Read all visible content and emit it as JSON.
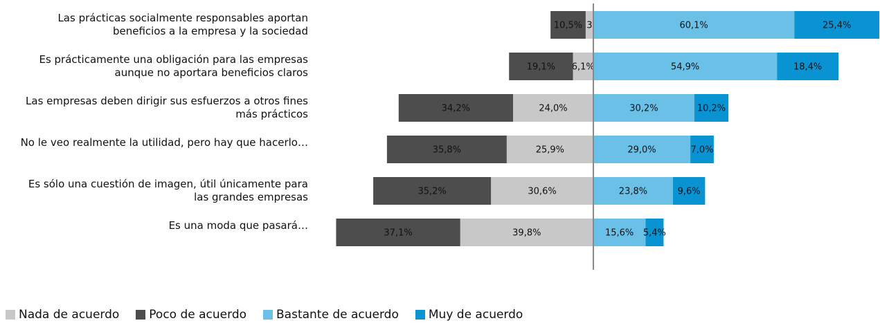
{
  "chart_data": {
    "type": "diverging_bar",
    "categories": [
      "Las prácticas socialmente responsables aportan beneficios a la empresa y la sociedad",
      "Es prácticamente una obligación para las empresas aunque no aportara beneficios claros",
      "Las empresas deben dirigir sus esfuerzos a otros fines más prácticos",
      "No le veo realmente la utilidad, pero hay que hacerlo…",
      "Es sólo una cuestión de imagen, útil únicamente para las grandes empresas",
      "Es una moda que pasará…"
    ],
    "series": [
      {
        "name": "Nada de acuerdo",
        "color": "#c8c8c8",
        "side": "left",
        "values": [
          2.3,
          6.1,
          24.0,
          25.9,
          30.6,
          39.8
        ],
        "value_labels": [
          "2,3%",
          "6,1%",
          "24,0%",
          "25,9%",
          "30,6%",
          "39,8%"
        ]
      },
      {
        "name": "Poco de acuerdo",
        "color": "#4d4d4d",
        "side": "left",
        "values": [
          10.5,
          19.1,
          34.2,
          35.8,
          35.2,
          37.1
        ],
        "value_labels": [
          "10,5%",
          "19,1%",
          "34,2%",
          "35,8%",
          "35,2%",
          "37,1%"
        ]
      },
      {
        "name": "Bastante de acuerdo",
        "color": "#6bc0e8",
        "side": "right",
        "values": [
          60.1,
          54.9,
          30.2,
          29.0,
          23.8,
          15.6
        ],
        "value_labels": [
          "60,1%",
          "54,9%",
          "30,2%",
          "29,0%",
          "23,8%",
          "15,6%"
        ]
      },
      {
        "name": "Muy de acuerdo",
        "color": "#0a93d2",
        "side": "right",
        "values": [
          25.4,
          18.4,
          10.2,
          7.0,
          9.6,
          5.4
        ],
        "value_labels": [
          "25,4%",
          "18,4%",
          "10,2%",
          "7,0%",
          "9,6%",
          "5,4%"
        ]
      }
    ],
    "xlim": [
      -77.2,
      85.7
    ]
  }
}
